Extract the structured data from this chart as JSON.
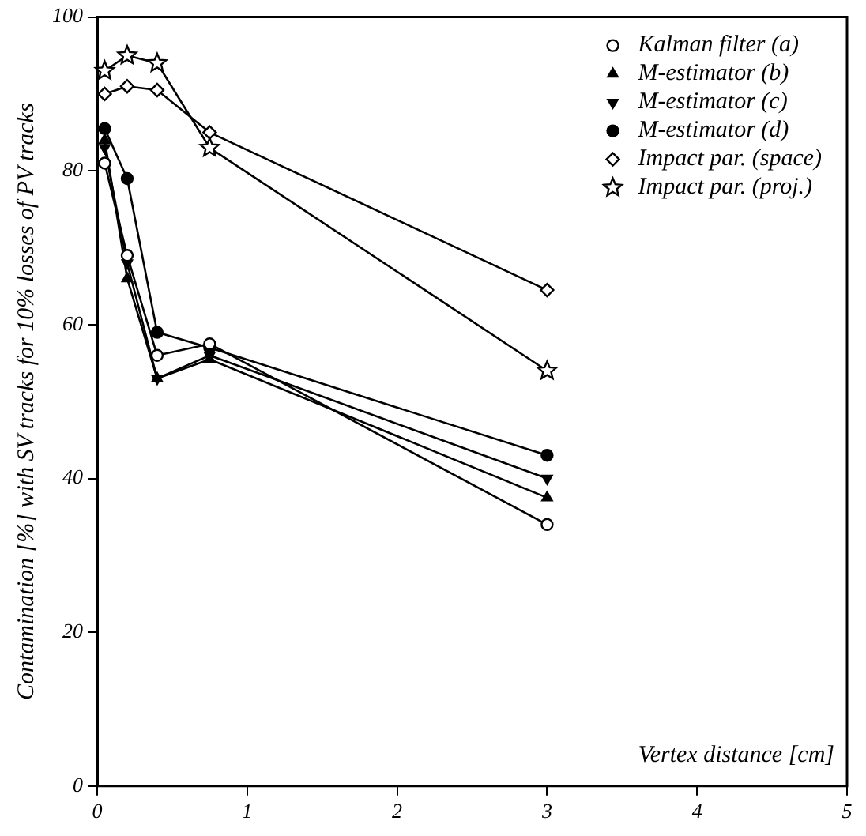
{
  "chart_data": {
    "type": "line",
    "ylabel": "Contamination [%] with SV tracks for 10% losses of PV tracks",
    "xlabel": "Vertex distance [cm]",
    "xlim": [
      0,
      5
    ],
    "xticks": [
      0,
      1,
      2,
      3,
      4,
      5
    ],
    "ylim": [
      0,
      100
    ],
    "yticks": [
      0,
      20,
      40,
      60,
      80,
      100
    ],
    "grid": false,
    "legend": "top right",
    "series": [
      {
        "name": "Kalman filter (a)",
        "color": "#000000",
        "marker": "circle",
        "x": [
          0.05,
          0.2,
          0.4,
          0.75,
          3
        ],
        "values": [
          81,
          69,
          56,
          57.5,
          34
        ]
      },
      {
        "name": "M-estimator (b)",
        "color": "#000000",
        "marker": "triangle",
        "x": [
          0.05,
          0.2,
          0.4,
          0.75,
          3
        ],
        "values": [
          84,
          66,
          53,
          55.5,
          37.5
        ]
      },
      {
        "name": "M-estimator (c)",
        "color": "#000000",
        "marker": "triangle-down",
        "x": [
          0.05,
          0.2,
          0.4,
          0.75,
          3
        ],
        "values": [
          83,
          68,
          53,
          56,
          40
        ]
      },
      {
        "name": "M-estimator (d)",
        "color": "#000000",
        "marker": "filled-circle",
        "x": [
          0.05,
          0.2,
          0.4,
          0.75,
          3
        ],
        "values": [
          85.5,
          79,
          59,
          57,
          43
        ]
      },
      {
        "name": "Impact par. (space)",
        "color": "#000000",
        "marker": "diamond",
        "x": [
          0.05,
          0.2,
          0.4,
          0.75,
          3
        ],
        "values": [
          90,
          91,
          90.5,
          85,
          64.5
        ]
      },
      {
        "name": "Impact par. (proj.)",
        "color": "#000000",
        "marker": "star",
        "x": [
          0.05,
          0.2,
          0.4,
          0.75,
          3
        ],
        "values": [
          93,
          95,
          94,
          83,
          54
        ]
      }
    ]
  }
}
